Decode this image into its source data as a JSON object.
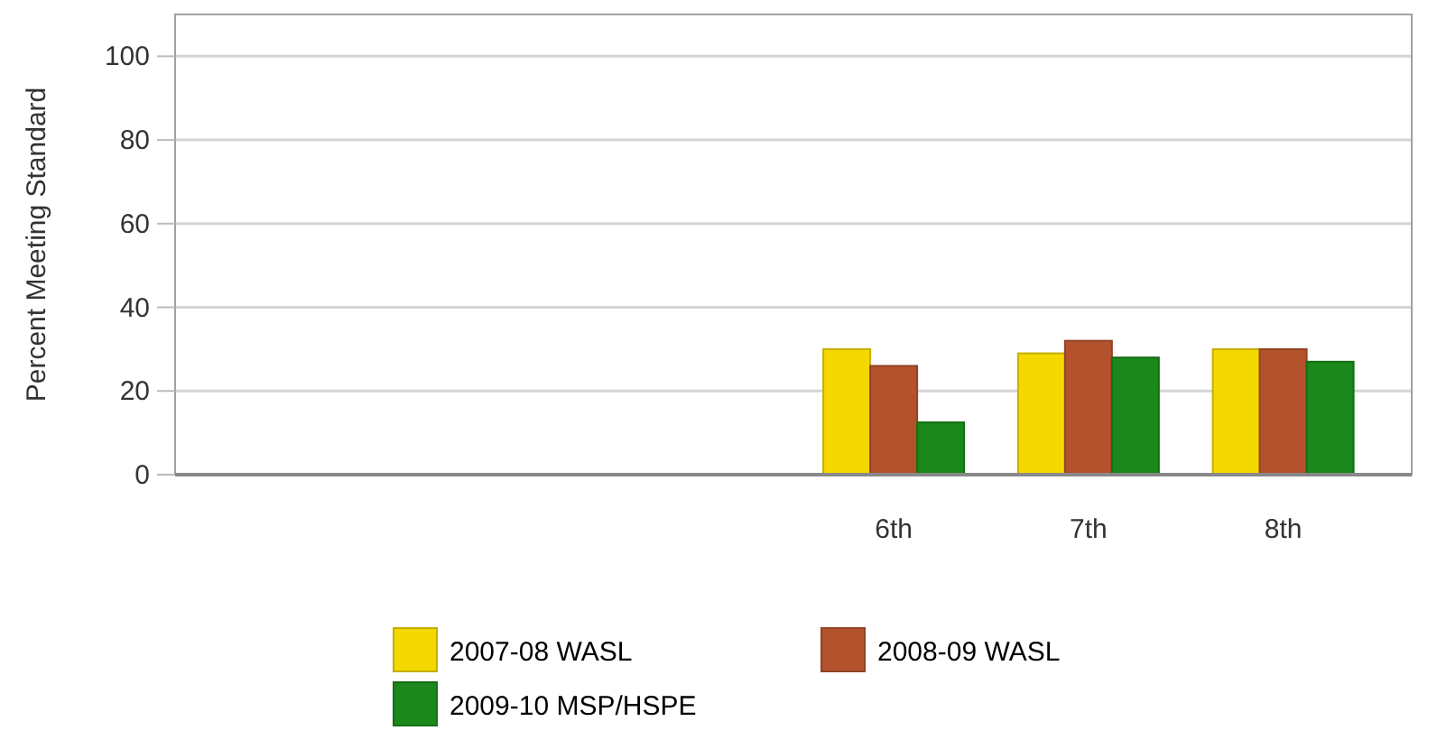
{
  "chart_data": {
    "type": "bar",
    "ylabel": "Percent Meeting Standard",
    "categories": [
      null,
      null,
      null,
      "6th",
      "7th",
      "8th"
    ],
    "series": [
      {
        "name": "2007-08 WASL",
        "color": "#f5d800",
        "values": [
          null,
          null,
          null,
          30,
          29,
          30
        ]
      },
      {
        "name": "2008-09 WASL",
        "color": "#b5522e",
        "values": [
          null,
          null,
          null,
          26,
          32,
          30
        ]
      },
      {
        "name": "2009-10 MSP/HSPE",
        "color": "#1a881a",
        "values": [
          null,
          null,
          null,
          12.5,
          28,
          27
        ]
      }
    ],
    "ylim": [
      0,
      110
    ],
    "yticks": [
      0,
      20,
      40,
      60,
      80,
      100
    ],
    "grid": "y",
    "legend": "bottom"
  }
}
